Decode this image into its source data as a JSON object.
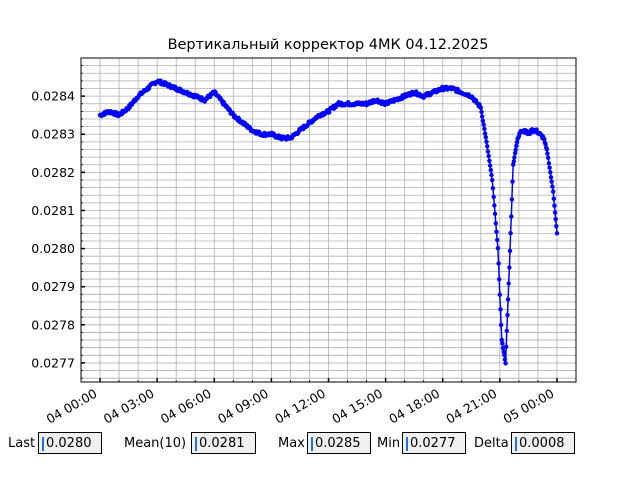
{
  "chart_data": {
    "type": "line",
    "title": "Вертикальный корректор 4МК 04.12.2025",
    "xlabel": "",
    "ylabel": "",
    "x_tick_labels": [
      "04 00:00",
      "04 03:00",
      "04 06:00",
      "04 09:00",
      "04 12:00",
      "04 15:00",
      "04 18:00",
      "04 21:00",
      "05 00:00"
    ],
    "x_tick_hours": [
      0,
      3,
      6,
      9,
      12,
      15,
      18,
      21,
      24
    ],
    "xlim_hours": [
      -1.0,
      25.0
    ],
    "y_tick_labels": [
      "0.0277",
      "0.0278",
      "0.0279",
      "0.0280",
      "0.0281",
      "0.0282",
      "0.0283",
      "0.0284"
    ],
    "y_ticks": [
      0.0277,
      0.0278,
      0.0279,
      0.028,
      0.0281,
      0.0282,
      0.0283,
      0.0284
    ],
    "ylim": [
      0.02765,
      0.0285
    ],
    "grid": true,
    "series": [
      {
        "color": "#0000ff",
        "x_hours": [
          0.0,
          0.5,
          1.0,
          1.5,
          2.0,
          2.5,
          3.0,
          3.5,
          4.0,
          4.5,
          5.0,
          5.5,
          6.0,
          6.5,
          7.0,
          7.5,
          8.0,
          8.5,
          9.0,
          9.5,
          10.0,
          10.5,
          11.0,
          11.5,
          12.0,
          12.5,
          13.0,
          13.5,
          14.0,
          14.5,
          15.0,
          15.5,
          16.0,
          16.5,
          17.0,
          17.5,
          18.0,
          18.5,
          19.0,
          19.5,
          20.0,
          20.3,
          20.6,
          20.9,
          21.1,
          21.3,
          21.5,
          21.7,
          21.9,
          22.1,
          22.3,
          22.5,
          22.7,
          22.9,
          23.1,
          23.3,
          23.5,
          23.8,
          24.0
        ],
        "values": [
          0.02835,
          0.02836,
          0.02835,
          0.02837,
          0.0284,
          0.02842,
          0.02844,
          0.02843,
          0.02842,
          0.02841,
          0.0284,
          0.02839,
          0.02841,
          0.02838,
          0.02835,
          0.02833,
          0.02831,
          0.0283,
          0.0283,
          0.02829,
          0.02829,
          0.02831,
          0.02833,
          0.02835,
          0.02836,
          0.02838,
          0.02838,
          0.02838,
          0.02838,
          0.02839,
          0.02838,
          0.02839,
          0.0284,
          0.02841,
          0.0284,
          0.02841,
          0.02842,
          0.02842,
          0.02841,
          0.0284,
          0.02837,
          0.02828,
          0.02818,
          0.028,
          0.02776,
          0.0277,
          0.02795,
          0.02822,
          0.02828,
          0.02831,
          0.02831,
          0.0283,
          0.02831,
          0.02831,
          0.0283,
          0.02829,
          0.02825,
          0.02815,
          0.02804
        ]
      }
    ]
  },
  "stats": {
    "last_label": "Last",
    "last_value": "0.0280",
    "mean_label": "Mean(10)",
    "mean_value": "0.0281",
    "max_label": "Max",
    "max_value": "0.0285",
    "min_label": "Min",
    "min_value": "0.0277",
    "delta_label": "Delta",
    "delta_value": "0.0008"
  }
}
